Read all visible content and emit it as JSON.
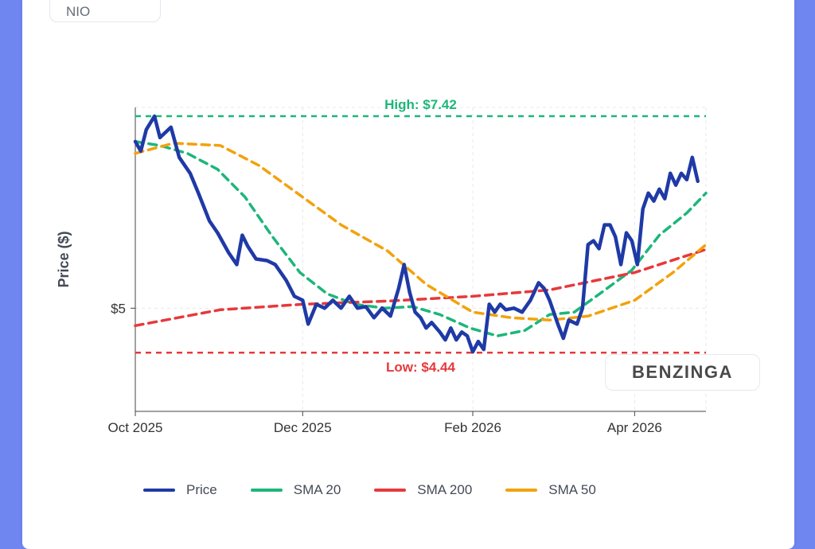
{
  "ticker": {
    "label": "NIO"
  },
  "watermark": {
    "text": "BENZINGA"
  },
  "colors": {
    "price": "#1f3aa6",
    "sma20": "#1db67a",
    "sma200": "#e6393c",
    "sma50": "#f2a20c",
    "grid": "#e8e8ec",
    "axis": "#444444"
  },
  "chart_data": {
    "type": "line",
    "title": "",
    "xlabel": "",
    "ylabel": "Price ($)",
    "x_range": [
      "2025-10-01",
      "2026-04-27"
    ],
    "ylim": [
      3.7,
      7.53
    ],
    "x_ticks": [
      {
        "date": "2025-10-01",
        "label": "Oct 2025"
      },
      {
        "date": "2025-12-01",
        "label": "Dec 2025"
      },
      {
        "date": "2026-02-01",
        "label": "Feb 2026"
      },
      {
        "date": "2026-04-01",
        "label": "Apr 2026"
      }
    ],
    "y_ticks": [
      {
        "value": 5,
        "label": "$5"
      }
    ],
    "grid": true,
    "legend_position": "bottom",
    "reference_lines": [
      {
        "name": "High",
        "value": 7.42,
        "label": "High: $7.42",
        "color": "#1db67a",
        "style": "dashed"
      },
      {
        "name": "Low",
        "value": 4.44,
        "label": "Low: $4.44",
        "color": "#e6393c",
        "style": "dashed"
      }
    ],
    "series": [
      {
        "name": "Price",
        "color": "#1f3aa6",
        "style": "solid",
        "points": [
          [
            "2025-10-01",
            7.1
          ],
          [
            "2025-10-03",
            6.98
          ],
          [
            "2025-10-05",
            7.25
          ],
          [
            "2025-10-08",
            7.42
          ],
          [
            "2025-10-10",
            7.15
          ],
          [
            "2025-10-14",
            7.28
          ],
          [
            "2025-10-17",
            6.9
          ],
          [
            "2025-10-21",
            6.7
          ],
          [
            "2025-10-24",
            6.45
          ],
          [
            "2025-10-28",
            6.1
          ],
          [
            "2025-10-31",
            5.95
          ],
          [
            "2025-11-04",
            5.7
          ],
          [
            "2025-11-07",
            5.55
          ],
          [
            "2025-11-09",
            5.92
          ],
          [
            "2025-11-11",
            5.78
          ],
          [
            "2025-11-14",
            5.62
          ],
          [
            "2025-11-18",
            5.6
          ],
          [
            "2025-11-21",
            5.55
          ],
          [
            "2025-11-25",
            5.35
          ],
          [
            "2025-11-28",
            5.15
          ],
          [
            "2025-12-01",
            5.1
          ],
          [
            "2025-12-03",
            4.8
          ],
          [
            "2025-12-06",
            5.05
          ],
          [
            "2025-12-09",
            5.0
          ],
          [
            "2025-12-12",
            5.1
          ],
          [
            "2025-12-15",
            5.0
          ],
          [
            "2025-12-18",
            5.15
          ],
          [
            "2025-12-21",
            5.0
          ],
          [
            "2025-12-24",
            5.02
          ],
          [
            "2025-12-27",
            4.88
          ],
          [
            "2025-12-30",
            5.0
          ],
          [
            "2026-01-02",
            4.9
          ],
          [
            "2026-01-05",
            5.25
          ],
          [
            "2026-01-07",
            5.55
          ],
          [
            "2026-01-09",
            5.2
          ],
          [
            "2026-01-11",
            4.95
          ],
          [
            "2026-01-13",
            4.88
          ],
          [
            "2026-01-15",
            4.75
          ],
          [
            "2026-01-17",
            4.82
          ],
          [
            "2026-01-20",
            4.7
          ],
          [
            "2026-01-22",
            4.6
          ],
          [
            "2026-01-24",
            4.75
          ],
          [
            "2026-01-26",
            4.6
          ],
          [
            "2026-01-28",
            4.7
          ],
          [
            "2026-01-30",
            4.65
          ],
          [
            "2026-02-01",
            4.45
          ],
          [
            "2026-02-03",
            4.58
          ],
          [
            "2026-02-05",
            4.48
          ],
          [
            "2026-02-07",
            5.05
          ],
          [
            "2026-02-09",
            4.95
          ],
          [
            "2026-02-11",
            5.05
          ],
          [
            "2026-02-13",
            4.98
          ],
          [
            "2026-02-16",
            5.0
          ],
          [
            "2026-02-19",
            4.95
          ],
          [
            "2026-02-22",
            5.1
          ],
          [
            "2026-02-25",
            5.32
          ],
          [
            "2026-02-27",
            5.25
          ],
          [
            "2026-03-01",
            5.1
          ],
          [
            "2026-03-04",
            4.8
          ],
          [
            "2026-03-06",
            4.62
          ],
          [
            "2026-03-08",
            4.85
          ],
          [
            "2026-03-11",
            4.8
          ],
          [
            "2026-03-13",
            5.0
          ],
          [
            "2026-03-15",
            5.8
          ],
          [
            "2026-03-17",
            5.85
          ],
          [
            "2026-03-19",
            5.75
          ],
          [
            "2026-03-21",
            6.05
          ],
          [
            "2026-03-23",
            6.05
          ],
          [
            "2026-03-25",
            5.9
          ],
          [
            "2026-03-27",
            5.55
          ],
          [
            "2026-03-29",
            5.95
          ],
          [
            "2026-03-31",
            5.85
          ],
          [
            "2026-04-02",
            5.55
          ],
          [
            "2026-04-04",
            6.25
          ],
          [
            "2026-04-06",
            6.45
          ],
          [
            "2026-04-08",
            6.35
          ],
          [
            "2026-04-10",
            6.5
          ],
          [
            "2026-04-12",
            6.38
          ],
          [
            "2026-04-14",
            6.7
          ],
          [
            "2026-04-16",
            6.55
          ],
          [
            "2026-04-18",
            6.7
          ],
          [
            "2026-04-20",
            6.62
          ],
          [
            "2026-04-22",
            6.9
          ],
          [
            "2026-04-24",
            6.6
          ]
        ]
      },
      {
        "name": "SMA 20",
        "color": "#1db67a",
        "style": "dashed",
        "points": [
          [
            "2025-10-01",
            7.1
          ],
          [
            "2025-10-10",
            7.05
          ],
          [
            "2025-10-20",
            6.95
          ],
          [
            "2025-10-31",
            6.75
          ],
          [
            "2025-11-10",
            6.4
          ],
          [
            "2025-11-20",
            5.9
          ],
          [
            "2025-11-30",
            5.45
          ],
          [
            "2025-12-10",
            5.18
          ],
          [
            "2025-12-20",
            5.05
          ],
          [
            "2025-12-31",
            5.0
          ],
          [
            "2026-01-10",
            5.02
          ],
          [
            "2026-01-20",
            4.92
          ],
          [
            "2026-01-31",
            4.75
          ],
          [
            "2026-02-10",
            4.65
          ],
          [
            "2026-02-20",
            4.72
          ],
          [
            "2026-03-01",
            4.92
          ],
          [
            "2026-03-10",
            4.95
          ],
          [
            "2026-03-20",
            5.2
          ],
          [
            "2026-03-31",
            5.48
          ],
          [
            "2026-04-10",
            5.92
          ],
          [
            "2026-04-20",
            6.2
          ],
          [
            "2026-04-27",
            6.45
          ]
        ]
      },
      {
        "name": "SMA 200",
        "color": "#e6393c",
        "style": "dashed",
        "points": [
          [
            "2025-10-01",
            4.78
          ],
          [
            "2025-11-01",
            4.98
          ],
          [
            "2025-12-01",
            5.05
          ],
          [
            "2026-01-01",
            5.09
          ],
          [
            "2026-02-01",
            5.15
          ],
          [
            "2026-03-01",
            5.23
          ],
          [
            "2026-04-01",
            5.45
          ],
          [
            "2026-04-27",
            5.74
          ]
        ]
      },
      {
        "name": "SMA 50",
        "color": "#f2a20c",
        "style": "dashed",
        "points": [
          [
            "2025-10-01",
            6.95
          ],
          [
            "2025-10-15",
            7.08
          ],
          [
            "2025-11-01",
            7.05
          ],
          [
            "2025-11-15",
            6.8
          ],
          [
            "2025-12-01",
            6.4
          ],
          [
            "2025-12-15",
            6.05
          ],
          [
            "2026-01-01",
            5.72
          ],
          [
            "2026-01-15",
            5.3
          ],
          [
            "2026-02-01",
            4.95
          ],
          [
            "2026-02-15",
            4.88
          ],
          [
            "2026-03-01",
            4.85
          ],
          [
            "2026-03-15",
            4.9
          ],
          [
            "2026-04-01",
            5.1
          ],
          [
            "2026-04-15",
            5.45
          ],
          [
            "2026-04-27",
            5.8
          ]
        ]
      }
    ]
  }
}
